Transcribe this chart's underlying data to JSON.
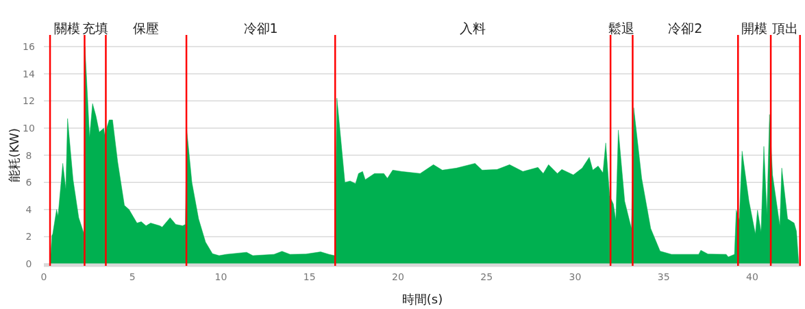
{
  "chart_data": {
    "type": "area",
    "xlabel": "時間(s)",
    "ylabel": "能耗(KW)",
    "color": "#00b050",
    "x": [
      0.35,
      0.46,
      0.5,
      0.72,
      0.8,
      1.07,
      1.24,
      1.34,
      1.65,
      1.97,
      2.27,
      2.32,
      2.49,
      2.58,
      2.75,
      2.94,
      3.13,
      3.39,
      3.43,
      3.69,
      3.88,
      4.17,
      4.55,
      4.81,
      5.26,
      5.5,
      5.77,
      6.03,
      6.55,
      6.68,
      7.13,
      7.45,
      7.84,
      7.99,
      8.07,
      8.36,
      8.74,
      9.13,
      9.52,
      9.9,
      10.3,
      11.45,
      11.8,
      13.0,
      13.45,
      13.9,
      14.8,
      15.63,
      16.1,
      16.42,
      16.55,
      17.0,
      17.3,
      17.6,
      17.77,
      18.0,
      18.15,
      18.67,
      19.2,
      19.4,
      19.7,
      20.2,
      21.25,
      22.0,
      22.5,
      23.3,
      24.35,
      24.75,
      25.6,
      26.3,
      27.05,
      27.9,
      28.2,
      28.5,
      29.0,
      29.25,
      29.9,
      30.4,
      30.8,
      31.0,
      31.3,
      31.57,
      31.73,
      31.95,
      32.16,
      32.3,
      32.44,
      32.8,
      33.18,
      33.31,
      33.76,
      34.27,
      34.8,
      35.44,
      36.98,
      37.1,
      37.5,
      38.53,
      38.65,
      39.0,
      39.1,
      39.27,
      39.43,
      39.82,
      40.18,
      40.3,
      40.5,
      40.66,
      40.83,
      40.98,
      41.15,
      41.56,
      41.67,
      42.0,
      42.37,
      42.5,
      42.63
    ],
    "values": [
      0,
      2.1,
      2.2,
      4.0,
      3.5,
      7.4,
      5.5,
      10.7,
      6.2,
      3.4,
      2.2,
      16.0,
      11.7,
      9.3,
      11.8,
      10.9,
      9.7,
      10.0,
      9.5,
      10.6,
      10.6,
      7.5,
      4.3,
      4.0,
      3.0,
      3.1,
      2.8,
      3.0,
      2.8,
      2.7,
      3.4,
      2.9,
      2.8,
      2.9,
      9.85,
      6.0,
      3.3,
      1.6,
      0.75,
      0.6,
      0.7,
      0.85,
      0.6,
      0.7,
      0.92,
      0.7,
      0.72,
      0.88,
      0.7,
      0.6,
      12.2,
      6.0,
      6.1,
      5.9,
      6.65,
      6.8,
      6.2,
      6.65,
      6.65,
      6.3,
      6.9,
      6.8,
      6.65,
      7.3,
      6.9,
      7.05,
      7.4,
      6.9,
      6.95,
      7.3,
      6.8,
      7.1,
      6.65,
      7.3,
      6.65,
      6.95,
      6.55,
      7.05,
      7.85,
      6.9,
      7.2,
      6.7,
      8.9,
      5.0,
      4.4,
      3.2,
      9.85,
      4.6,
      2.6,
      11.5,
      6.3,
      2.6,
      0.93,
      0.7,
      0.7,
      1.0,
      0.72,
      0.7,
      0.5,
      0.7,
      3.95,
      3.2,
      8.3,
      4.6,
      2.2,
      3.95,
      2.35,
      8.65,
      3.6,
      11.0,
      6.55,
      2.8,
      7.05,
      3.3,
      3.0,
      2.4,
      0
    ],
    "xlim": [
      0,
      42.75
    ],
    "ylim": [
      0,
      16
    ],
    "xticks": [
      0,
      5,
      10,
      15,
      20,
      25,
      30,
      35,
      40
    ],
    "yticks": [
      0,
      2,
      4,
      6,
      8,
      10,
      12,
      14,
      16
    ],
    "grid": "y",
    "ref_lines": [
      {
        "axis": "x",
        "value": 0.35,
        "color": "#ff0000"
      },
      {
        "axis": "x",
        "value": 2.3,
        "color": "#ff0000"
      },
      {
        "axis": "x",
        "value": 3.5,
        "color": "#ff0000"
      },
      {
        "axis": "x",
        "value": 8.05,
        "color": "#ff0000"
      },
      {
        "axis": "x",
        "value": 16.45,
        "color": "#ff0000"
      },
      {
        "axis": "x",
        "value": 32.0,
        "color": "#ff0000"
      },
      {
        "axis": "x",
        "value": 33.25,
        "color": "#ff0000"
      },
      {
        "axis": "x",
        "value": 39.2,
        "color": "#ff0000"
      },
      {
        "axis": "x",
        "value": 41.05,
        "color": "#ff0000"
      },
      {
        "axis": "x",
        "value": 42.7,
        "color": "#ff0000"
      }
    ],
    "annotations": [
      "關模",
      "充填",
      "保壓",
      "冷卻1",
      "入料",
      "鬆退",
      "冷卻2",
      "開模",
      "頂出"
    ]
  }
}
